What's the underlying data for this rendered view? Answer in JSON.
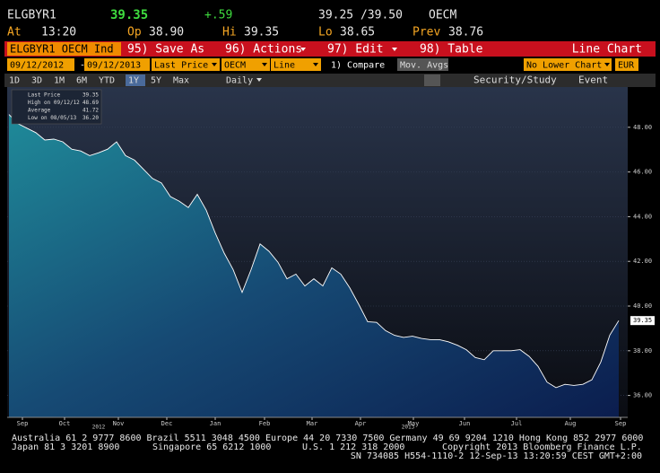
{
  "header": {
    "ticker": "ELGBYR1",
    "price": "39.35",
    "change": "+.59",
    "bid_ask": "39.25 /39.50",
    "source": "OECM",
    "at_label": "At",
    "at": "13:20",
    "op_label": "Op",
    "op": "38.90",
    "hi_label": "Hi",
    "hi": "39.35",
    "lo_label": "Lo",
    "lo": "38.65",
    "prev_label": "Prev",
    "prev": "38.76"
  },
  "toolbar": {
    "security": "ELGBYR1 OECM Ind",
    "menus": [
      "95) Save As",
      "96) Actions",
      "97) Edit",
      "98) Table"
    ],
    "chart_type": "Line Chart"
  },
  "settings": [
    "09/12/2012",
    "-",
    "09/12/2013",
    "Last Price",
    "OECM",
    "Line",
    "1) Compare",
    "Mov. Avgs",
    "No Lower Chart",
    "EUR"
  ],
  "periods": [
    "1D",
    "3D",
    "1M",
    "6M",
    "YTD",
    "1Y",
    "5Y",
    "Max"
  ],
  "frequency": "Daily",
  "tools": [
    "Security/Study",
    "Event"
  ],
  "chart_data": {
    "type": "area",
    "legend": [
      {
        "label": "Last Price",
        "value": "39.35"
      },
      {
        "label": "High on 09/12/12",
        "value": "48.69"
      },
      {
        "label": "Average",
        "value": "41.72"
      },
      {
        "label": "Low on 08/05/13",
        "value": "36.20"
      }
    ],
    "last_value_label": "39.35",
    "values": [
      48.57,
      48.16,
      47.96,
      47.76,
      47.43,
      47.47,
      47.35,
      47.02,
      46.94,
      46.73,
      46.86,
      47.02,
      47.35,
      46.73,
      46.53,
      46.12,
      45.71,
      45.51,
      44.9,
      44.69,
      44.41,
      45.0,
      44.29,
      43.27,
      42.37,
      41.63,
      40.61,
      41.63,
      42.78,
      42.45,
      41.96,
      41.22,
      41.43,
      40.9,
      41.22,
      40.9,
      41.71,
      41.43,
      40.82,
      40.08,
      39.3,
      39.27,
      38.9,
      38.69,
      38.6,
      38.65,
      38.55,
      38.5,
      38.5,
      38.4,
      38.25,
      38.05,
      37.7,
      37.6,
      38.0,
      38.0,
      38.0,
      38.05,
      37.75,
      37.3,
      36.6,
      36.35,
      36.5,
      36.45,
      36.5,
      36.7,
      37.5,
      38.7,
      39.35
    ],
    "color": "#ffffff",
    "xlim": [
      -0.2,
      69
    ],
    "xticks": [
      {
        "value": 1.5,
        "label": "Sep"
      },
      {
        "value": 6.2,
        "label": "Oct"
      },
      {
        "value": 12.2,
        "label": "Nov"
      },
      {
        "value": 17.6,
        "label": "Dec"
      },
      {
        "value": 23,
        "label": "Jan"
      },
      {
        "value": 28.5,
        "label": "Feb"
      },
      {
        "value": 33.8,
        "label": "Mar"
      },
      {
        "value": 39.2,
        "label": "Apr"
      },
      {
        "value": 45.1,
        "label": "May"
      },
      {
        "value": 50.8,
        "label": "Jun"
      },
      {
        "value": 56.6,
        "label": "Jul"
      },
      {
        "value": 62.6,
        "label": "Aug"
      },
      {
        "value": 68.2,
        "label": "Sep"
      }
    ],
    "year_ticks": [
      {
        "value": 10,
        "label": "2012"
      },
      {
        "value": 44.5,
        "label": "2013"
      }
    ],
    "ylim": [
      35.02,
      49.8
    ],
    "yticks": [
      {
        "value": 36,
        "label": "36.00"
      },
      {
        "value": 38,
        "label": "38.00"
      },
      {
        "value": 40,
        "label": "40.00"
      },
      {
        "value": 42,
        "label": "42.00"
      },
      {
        "value": 44,
        "label": "44.00"
      },
      {
        "value": 46,
        "label": "46.00"
      },
      {
        "value": 48,
        "label": "48.00"
      }
    ]
  },
  "footer": {
    "line1": "Australia 61 2 9777 8600 Brazil 5511 3048 4500 Europe 44 20 7330 7500 Germany 49 69 9204 1210 Hong Kong 852 2977 6000",
    "line2": [
      "Japan 81 3 3201 8900",
      "Singapore 65 6212 1000",
      "U.S. 1 212 318 2000",
      "Copyright 2013 Bloomberg Finance L.P."
    ],
    "line3": "SN 734085 H554-1110-2 12-Sep-13 13:20:59 CEST GMT+2:00"
  }
}
